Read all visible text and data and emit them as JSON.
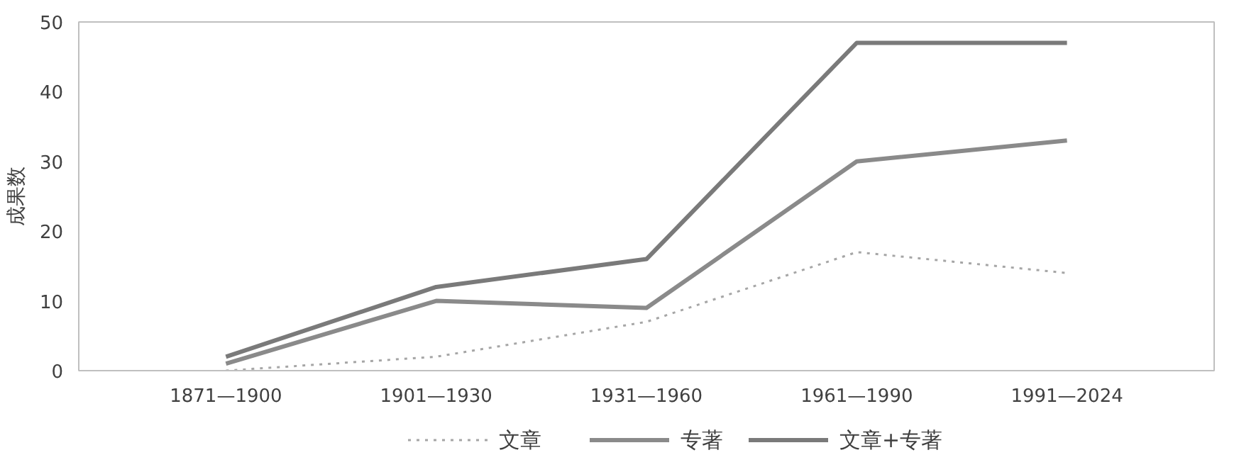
{
  "chart_data": {
    "type": "line",
    "ylabel": "成果数",
    "categories": [
      "1871—1900",
      "1901—1930",
      "1931—1960",
      "1961—1990",
      "1991—2024"
    ],
    "series": [
      {
        "name": "文章",
        "color": "#a6a6a6",
        "line_style": "dotted",
        "values": [
          0,
          2,
          7,
          17,
          14
        ]
      },
      {
        "name": "专著",
        "color": "#8a8a8a",
        "line_style": "solid",
        "values": [
          1,
          10,
          9,
          30,
          33
        ]
      },
      {
        "name": "文章+专著",
        "color": "#7a7a7a",
        "line_style": "solid",
        "values": [
          2,
          12,
          16,
          47,
          47
        ]
      }
    ],
    "ylim": [
      0,
      50
    ],
    "yticks": [
      0,
      10,
      20,
      30,
      40,
      50
    ],
    "grid": false,
    "legend": "bottom",
    "marker": "none"
  }
}
